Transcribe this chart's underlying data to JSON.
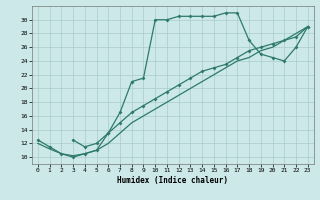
{
  "xlabel": "Humidex (Indice chaleur)",
  "bg_color": "#cce8e8",
  "grid_color": "#aacccc",
  "line_color": "#2d7a6b",
  "xlim": [
    -0.5,
    23.5
  ],
  "ylim": [
    9,
    32
  ],
  "xticks": [
    0,
    1,
    2,
    3,
    4,
    5,
    6,
    7,
    8,
    9,
    10,
    11,
    12,
    13,
    14,
    15,
    16,
    17,
    18,
    19,
    20,
    21,
    22,
    23
  ],
  "yticks": [
    10,
    12,
    14,
    16,
    18,
    20,
    22,
    24,
    26,
    28,
    30
  ],
  "curve1_x": [
    0,
    1,
    2,
    3,
    4,
    5,
    6,
    7,
    8,
    9,
    10,
    11,
    12,
    13,
    14,
    15,
    16,
    17,
    18,
    19,
    20,
    21,
    22,
    23
  ],
  "curve1_y": [
    12.5,
    11.5,
    10.5,
    10.0,
    10.5,
    11.0,
    13.5,
    16.5,
    21.0,
    21.5,
    30.0,
    30.0,
    30.5,
    30.5,
    30.5,
    30.5,
    31.0,
    31.0,
    27.0,
    25.0,
    24.5,
    24.0,
    26.0,
    29.0
  ],
  "curve2_x": [
    3,
    4,
    5,
    6,
    7,
    8,
    9,
    10,
    11,
    12,
    13,
    14,
    15,
    16,
    17,
    18,
    19,
    20,
    21,
    22,
    23
  ],
  "curve2_y": [
    12.5,
    11.5,
    12.0,
    13.5,
    15.0,
    16.5,
    17.5,
    18.5,
    19.5,
    20.5,
    21.5,
    22.5,
    23.0,
    23.5,
    24.5,
    25.5,
    26.0,
    26.5,
    27.0,
    27.5,
    29.0
  ],
  "curve3_x": [
    0,
    1,
    2,
    3,
    4,
    5,
    6,
    7,
    8,
    9,
    10,
    11,
    12,
    13,
    14,
    15,
    16,
    17,
    18,
    19,
    20,
    21,
    22,
    23
  ],
  "curve3_y": [
    12.0,
    11.2,
    10.5,
    10.2,
    10.5,
    11.0,
    12.0,
    13.5,
    15.0,
    16.0,
    17.0,
    18.0,
    19.0,
    20.0,
    21.0,
    22.0,
    23.0,
    24.0,
    24.5,
    25.5,
    26.0,
    27.0,
    28.0,
    29.0
  ]
}
